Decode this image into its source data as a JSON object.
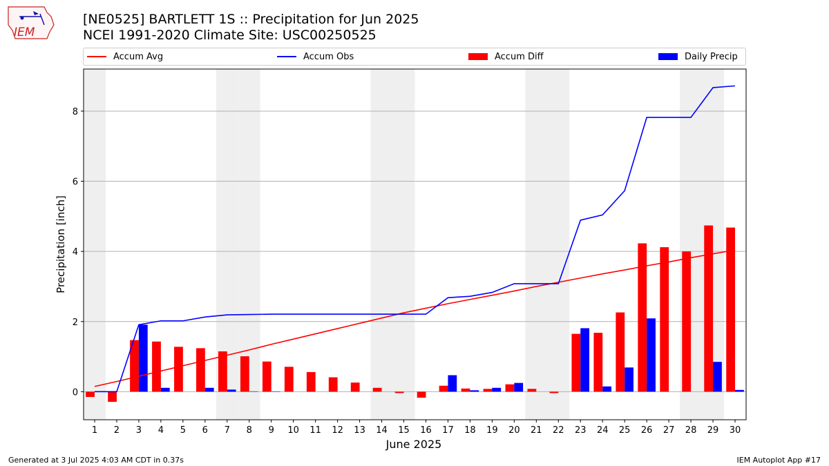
{
  "header": {
    "title_line1": "[NE0525] BARTLETT 1S :: Precipitation for Jun 2025",
    "title_line2": "NCEI 1991-2020 Climate Site: USC00250525",
    "logo_text": "IEM"
  },
  "footer": {
    "generated": "Generated at 3 Jul 2025 4:03 AM CDT in 0.37s",
    "app": "IEM Autoplot App #17"
  },
  "colors": {
    "avg": "#ff0000",
    "obs": "#0000ff",
    "diff": "#ff0000",
    "daily": "#0000ff",
    "weekend_shade": "#efefef",
    "grid": "#b0b0b0"
  },
  "chart_data": {
    "type": "bar",
    "xlabel": "June 2025",
    "ylabel": "Precipitation [inch]",
    "xlim": [
      0.5,
      30.5
    ],
    "ylim": [
      -0.8,
      9.2
    ],
    "yticks": [
      0,
      2,
      4,
      6,
      8
    ],
    "grid": "horizontal",
    "legend": "top",
    "x": [
      1,
      2,
      3,
      4,
      5,
      6,
      7,
      8,
      9,
      10,
      11,
      12,
      13,
      14,
      15,
      16,
      17,
      18,
      19,
      20,
      21,
      22,
      23,
      24,
      25,
      26,
      27,
      28,
      29,
      30
    ],
    "weekend_days": [
      1,
      7,
      8,
      14,
      15,
      21,
      22,
      28,
      29
    ],
    "series": [
      {
        "name": "Accum Avg",
        "kind": "line",
        "color": "#ff0000",
        "values": [
          0.15,
          0.29,
          0.44,
          0.59,
          0.74,
          0.89,
          1.04,
          1.19,
          1.35,
          1.5,
          1.65,
          1.8,
          1.95,
          2.1,
          2.25,
          2.38,
          2.51,
          2.63,
          2.75,
          2.87,
          3.0,
          3.12,
          3.24,
          3.36,
          3.47,
          3.59,
          3.7,
          3.82,
          3.93,
          4.04
        ]
      },
      {
        "name": "Accum Obs",
        "kind": "line",
        "color": "#0000ff",
        "values": [
          0.0,
          0.0,
          1.91,
          2.02,
          2.02,
          2.13,
          2.19,
          2.2,
          2.21,
          2.21,
          2.21,
          2.21,
          2.21,
          2.21,
          2.21,
          2.21,
          2.68,
          2.72,
          2.83,
          3.08,
          3.08,
          3.08,
          4.89,
          5.04,
          5.73,
          7.82,
          7.82,
          7.82,
          8.67,
          8.72
        ]
      },
      {
        "name": "Accum Diff",
        "kind": "bar",
        "color": "#ff0000",
        "values": [
          -0.15,
          -0.29,
          1.47,
          1.43,
          1.28,
          1.24,
          1.15,
          1.01,
          0.86,
          0.71,
          0.56,
          0.41,
          0.26,
          0.11,
          -0.04,
          -0.17,
          0.17,
          0.09,
          0.08,
          0.21,
          0.08,
          -0.04,
          1.65,
          1.68,
          2.26,
          4.23,
          4.12,
          4.0,
          4.74,
          4.68
        ]
      },
      {
        "name": "Daily Precip",
        "kind": "bar",
        "color": "#0000ff",
        "values": [
          0.0,
          0.0,
          1.91,
          0.11,
          0.0,
          0.11,
          0.06,
          0.01,
          0.01,
          0.0,
          0.0,
          0.0,
          0.0,
          0.0,
          0.0,
          0.0,
          0.47,
          0.04,
          0.11,
          0.25,
          0.0,
          0.0,
          1.81,
          0.15,
          0.69,
          2.09,
          0.0,
          0.0,
          0.85,
          0.05
        ]
      }
    ]
  }
}
